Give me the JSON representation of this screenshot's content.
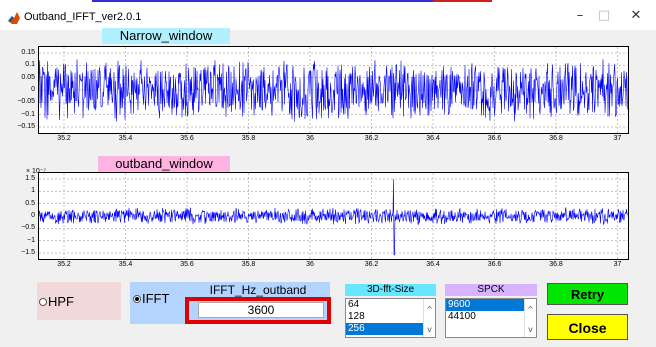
{
  "window": {
    "title": "Outband_IFFT_ver2.0.1",
    "minimize_glyph": "–",
    "maximize_glyph": "□",
    "close_glyph": "✕",
    "app_icon": "matlab-icon"
  },
  "plots": {
    "narrow": {
      "title": "Narrow_window",
      "title_bg": "#b3f0ff",
      "signal_color": "#0000ff",
      "yticks": [
        "0.15",
        "0.1",
        "0.05",
        "0",
        "−0.05",
        "−0.1",
        "−0.15"
      ],
      "xticks": [
        "35.2",
        "35.4",
        "35.6",
        "35.8",
        "36",
        "36.2",
        "36.4",
        "36.6",
        "36.8",
        "37"
      ]
    },
    "outband": {
      "title": "outband_window",
      "title_bg": "#ffb3e0",
      "signal_color": "#0000ff",
      "exponent": "× 10⁻⁷",
      "yticks": [
        "1.5",
        "1",
        "0.5",
        "0",
        "−0.5",
        "−1",
        "−1.5"
      ],
      "xticks": [
        "35.2",
        "35.4",
        "35.6",
        "35.8",
        "36",
        "36.2",
        "36.4",
        "36.6",
        "36.8",
        "37"
      ]
    }
  },
  "controls": {
    "hpf_label": "HPF",
    "hpf_selected": false,
    "hpf_bg": "#f2d9d9",
    "ifft_label": "IFFT",
    "ifft_selected": true,
    "ifft_bg": "#b3d4ff",
    "ifft_hz_label": "IFFT_Hz_outband",
    "ifft_hz_value": "3600",
    "fft_size_label": "3D-fft-Size",
    "fft_size_bg": "#66e6ff",
    "fft_size_options": [
      "64",
      "128",
      "256"
    ],
    "fft_size_selected": "256",
    "spck_label": "SPCK",
    "spck_bg": "#d9b3ff",
    "spck_options": [
      "9600",
      "44100"
    ],
    "spck_selected": "9600",
    "retry_label": "Retry",
    "retry_bg": "#00e600",
    "close_label": "Close",
    "close_bg": "#ffff00",
    "highlight_color": "#e00000"
  }
}
